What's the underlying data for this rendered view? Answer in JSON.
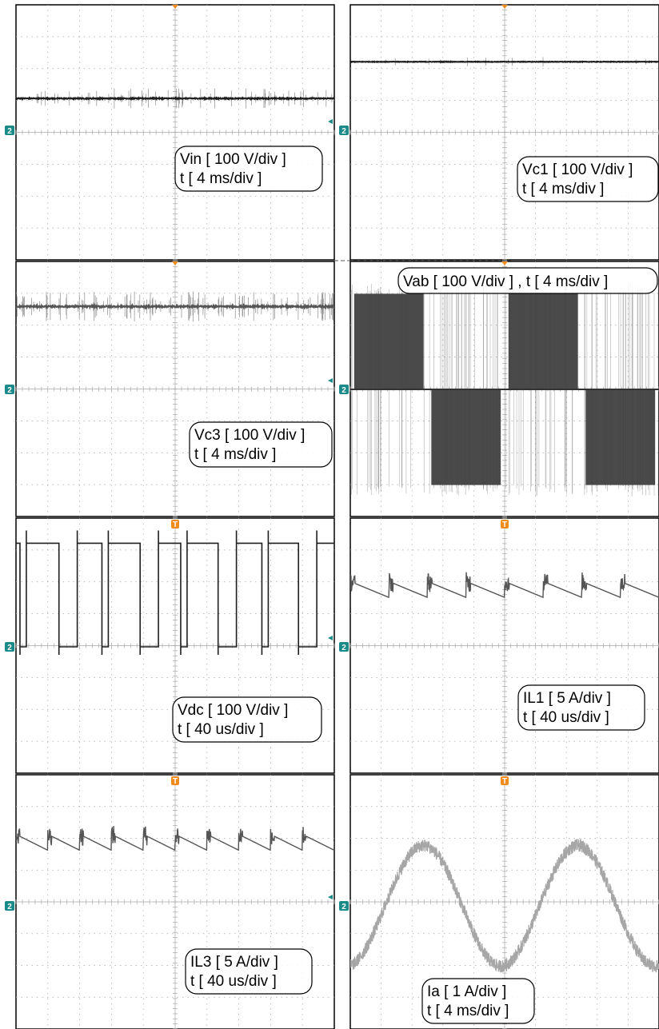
{
  "colors": {
    "background": "#ffffff",
    "grid": "#a8a8a8",
    "trace_dark": "#1e1e1e",
    "trace_mid": "#555555",
    "trace_light": "#a6a6a6",
    "trigger": "#f08c1e",
    "marker": "#1a8a8a"
  },
  "channel_marker": "2",
  "trigger_marker": "T",
  "chart_data": [
    {
      "id": "vin",
      "type": "line",
      "label_lines": [
        "Vin [ 100 V/div ]",
        "t [ 4 ms/div ]"
      ],
      "x_unit": "ms",
      "x_per_div": 4,
      "xlim": [
        0,
        40
      ],
      "y_unit": "V",
      "y_per_div": 100,
      "series": [
        {
          "kind": "dc",
          "level": 100,
          "noise": 8,
          "spikes": 0.4
        }
      ]
    },
    {
      "id": "vc1",
      "type": "line",
      "label_lines": [
        "Vc1 [ 100 V/div ]",
        "t [ 4 ms/div ]"
      ],
      "x_unit": "ms",
      "x_per_div": 4,
      "xlim": [
        0,
        40
      ],
      "y_unit": "V",
      "y_per_div": 100,
      "series": [
        {
          "kind": "dc",
          "level": 215,
          "noise": 4,
          "spikes": 0.1
        }
      ]
    },
    {
      "id": "vc3",
      "type": "line",
      "label_lines": [
        "Vc3 [ 100 V/div ]",
        "t [ 4 ms/div ]"
      ],
      "x_unit": "ms",
      "x_per_div": 4,
      "xlim": [
        0,
        40
      ],
      "y_unit": "V",
      "y_per_div": 100,
      "series": [
        {
          "kind": "dc",
          "level": 260,
          "noise": 12,
          "spikes": 0.6
        }
      ]
    },
    {
      "id": "vab",
      "type": "line",
      "label_lines": [
        "Vab [ 100 V/div ] , t [ 4 ms/div ]"
      ],
      "x_unit": "ms",
      "x_per_div": 4,
      "xlim": [
        0,
        40
      ],
      "y_unit": "V",
      "y_per_div": 100,
      "series": [
        {
          "kind": "multilevel",
          "amplitude": 300,
          "period_ms": 20,
          "phase_ms": 0
        }
      ]
    },
    {
      "id": "vdc",
      "type": "line",
      "label_lines": [
        "Vdc [ 100 V/div ]",
        "t [ 40 us/div ]"
      ],
      "x_unit": "us",
      "x_per_div": 40,
      "xlim": [
        0,
        400
      ],
      "y_unit": "V",
      "y_per_div": 100,
      "series": [
        {
          "kind": "pulse",
          "high": 325,
          "low": 0,
          "period_us": 50,
          "low_width_us": 8
        }
      ]
    },
    {
      "id": "il1",
      "type": "line",
      "label_lines": [
        "IL1 [ 5 A/div ]",
        "t [ 40 us/div ]"
      ],
      "x_unit": "us",
      "x_per_div": 40,
      "xlim": [
        0,
        400
      ],
      "y_unit": "A",
      "y_per_div": 5,
      "series": [
        {
          "kind": "sawtooth",
          "mean": 9,
          "ripple": 2.5,
          "period_us": 50
        }
      ]
    },
    {
      "id": "il3",
      "type": "line",
      "label_lines": [
        "IL3 [ 5 A/div ]",
        "t [ 40 us/div ]"
      ],
      "x_unit": "us",
      "x_per_div": 40,
      "xlim": [
        0,
        400
      ],
      "y_unit": "A",
      "y_per_div": 5,
      "series": [
        {
          "kind": "sawtooth",
          "mean": 10,
          "ripple": 2.5,
          "period_us": 40
        }
      ]
    },
    {
      "id": "ia",
      "type": "line",
      "label_lines": [
        "Ia [ 1 A/div ]",
        "t [ 4 ms/div ]"
      ],
      "x_unit": "ms",
      "x_per_div": 4,
      "xlim": [
        0,
        40
      ],
      "y_unit": "A",
      "y_per_div": 1,
      "series": [
        {
          "kind": "sine",
          "amplitude": 1.9,
          "period_ms": 20,
          "phase_ms": 0.5,
          "noise": 0.2
        }
      ]
    }
  ]
}
